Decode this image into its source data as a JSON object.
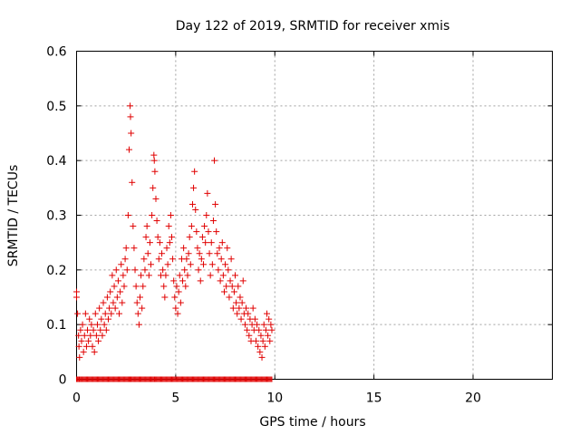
{
  "chart_data": {
    "type": "scatter",
    "title": "Day 122 of 2019, SRMTID for receiver xmis",
    "xlabel": "GPS time / hours",
    "ylabel": "SRMTID / TECUs",
    "xlim": [
      0,
      24
    ],
    "ylim": [
      0,
      0.6
    ],
    "xticks": [
      0,
      5,
      10,
      15,
      20
    ],
    "yticks": [
      0,
      0.1,
      0.2,
      0.3,
      0.4,
      0.5,
      0.6
    ],
    "xtick_labels": [
      "0",
      "5",
      "10",
      "15",
      "20"
    ],
    "ytick_labels": [
      "0",
      "0.1",
      "0.2",
      "0.3",
      "0.4",
      "0.5",
      "0.6"
    ],
    "grid": true,
    "marker": "+",
    "color": "#e00000",
    "series": [
      {
        "name": "SRMTID",
        "points": [
          [
            0.0,
            0.16
          ],
          [
            0.0,
            0.15
          ],
          [
            0.05,
            0.12
          ],
          [
            0.1,
            0.08
          ],
          [
            0.12,
            0.06
          ],
          [
            0.15,
            0.04
          ],
          [
            0.2,
            0.09
          ],
          [
            0.25,
            0.07
          ],
          [
            0.3,
            0.1
          ],
          [
            0.35,
            0.05
          ],
          [
            0.4,
            0.08
          ],
          [
            0.45,
            0.12
          ],
          [
            0.5,
            0.06
          ],
          [
            0.55,
            0.09
          ],
          [
            0.6,
            0.07
          ],
          [
            0.65,
            0.11
          ],
          [
            0.7,
            0.08
          ],
          [
            0.75,
            0.1
          ],
          [
            0.8,
            0.06
          ],
          [
            0.85,
            0.09
          ],
          [
            0.9,
            0.05
          ],
          [
            0.95,
            0.12
          ],
          [
            1.0,
            0.08
          ],
          [
            1.05,
            0.1
          ],
          [
            1.1,
            0.07
          ],
          [
            1.15,
            0.13
          ],
          [
            1.2,
            0.09
          ],
          [
            1.25,
            0.11
          ],
          [
            1.3,
            0.08
          ],
          [
            1.35,
            0.14
          ],
          [
            1.4,
            0.1
          ],
          [
            1.45,
            0.12
          ],
          [
            1.5,
            0.09
          ],
          [
            1.55,
            0.15
          ],
          [
            1.6,
            0.11
          ],
          [
            1.65,
            0.13
          ],
          [
            1.7,
            0.16
          ],
          [
            1.75,
            0.12
          ],
          [
            1.8,
            0.19
          ],
          [
            1.85,
            0.14
          ],
          [
            1.9,
            0.17
          ],
          [
            1.95,
            0.13
          ],
          [
            2.0,
            0.2
          ],
          [
            2.05,
            0.15
          ],
          [
            2.1,
            0.18
          ],
          [
            2.15,
            0.12
          ],
          [
            2.2,
            0.16
          ],
          [
            2.25,
            0.21
          ],
          [
            2.3,
            0.14
          ],
          [
            2.35,
            0.19
          ],
          [
            2.4,
            0.17
          ],
          [
            2.45,
            0.22
          ],
          [
            2.5,
            0.24
          ],
          [
            2.55,
            0.2
          ],
          [
            2.6,
            0.3
          ],
          [
            2.65,
            0.42
          ],
          [
            2.7,
            0.5
          ],
          [
            2.72,
            0.48
          ],
          [
            2.75,
            0.45
          ],
          [
            2.8,
            0.36
          ],
          [
            2.85,
            0.28
          ],
          [
            2.9,
            0.24
          ],
          [
            2.95,
            0.2
          ],
          [
            3.0,
            0.17
          ],
          [
            3.05,
            0.14
          ],
          [
            3.1,
            0.12
          ],
          [
            3.15,
            0.1
          ],
          [
            3.2,
            0.15
          ],
          [
            3.25,
            0.19
          ],
          [
            3.3,
            0.13
          ],
          [
            3.35,
            0.17
          ],
          [
            3.4,
            0.22
          ],
          [
            3.45,
            0.2
          ],
          [
            3.5,
            0.26
          ],
          [
            3.55,
            0.28
          ],
          [
            3.6,
            0.23
          ],
          [
            3.65,
            0.19
          ],
          [
            3.7,
            0.25
          ],
          [
            3.75,
            0.21
          ],
          [
            3.8,
            0.3
          ],
          [
            3.85,
            0.35
          ],
          [
            3.9,
            0.41
          ],
          [
            3.92,
            0.4
          ],
          [
            3.95,
            0.38
          ],
          [
            4.0,
            0.33
          ],
          [
            4.05,
            0.29
          ],
          [
            4.1,
            0.26
          ],
          [
            4.15,
            0.22
          ],
          [
            4.2,
            0.25
          ],
          [
            4.25,
            0.19
          ],
          [
            4.3,
            0.23
          ],
          [
            4.35,
            0.2
          ],
          [
            4.4,
            0.17
          ],
          [
            4.45,
            0.15
          ],
          [
            4.5,
            0.19
          ],
          [
            4.55,
            0.24
          ],
          [
            4.6,
            0.21
          ],
          [
            4.65,
            0.28
          ],
          [
            4.7,
            0.25
          ],
          [
            4.75,
            0.3
          ],
          [
            4.8,
            0.26
          ],
          [
            4.85,
            0.22
          ],
          [
            4.9,
            0.18
          ],
          [
            4.95,
            0.15
          ],
          [
            5.0,
            0.13
          ],
          [
            5.05,
            0.17
          ],
          [
            5.1,
            0.12
          ],
          [
            5.15,
            0.16
          ],
          [
            5.2,
            0.19
          ],
          [
            5.25,
            0.14
          ],
          [
            5.3,
            0.22
          ],
          [
            5.35,
            0.18
          ],
          [
            5.4,
            0.24
          ],
          [
            5.45,
            0.2
          ],
          [
            5.5,
            0.17
          ],
          [
            5.55,
            0.22
          ],
          [
            5.6,
            0.19
          ],
          [
            5.65,
            0.23
          ],
          [
            5.7,
            0.26
          ],
          [
            5.75,
            0.21
          ],
          [
            5.8,
            0.28
          ],
          [
            5.85,
            0.32
          ],
          [
            5.9,
            0.35
          ],
          [
            5.95,
            0.38
          ],
          [
            6.0,
            0.31
          ],
          [
            6.05,
            0.27
          ],
          [
            6.1,
            0.24
          ],
          [
            6.15,
            0.2
          ],
          [
            6.2,
            0.23
          ],
          [
            6.25,
            0.18
          ],
          [
            6.3,
            0.22
          ],
          [
            6.35,
            0.26
          ],
          [
            6.4,
            0.21
          ],
          [
            6.45,
            0.28
          ],
          [
            6.5,
            0.25
          ],
          [
            6.55,
            0.3
          ],
          [
            6.6,
            0.34
          ],
          [
            6.65,
            0.27
          ],
          [
            6.7,
            0.23
          ],
          [
            6.75,
            0.19
          ],
          [
            6.8,
            0.25
          ],
          [
            6.85,
            0.21
          ],
          [
            6.9,
            0.29
          ],
          [
            6.95,
            0.4
          ],
          [
            7.0,
            0.32
          ],
          [
            7.05,
            0.27
          ],
          [
            7.1,
            0.23
          ],
          [
            7.15,
            0.2
          ],
          [
            7.2,
            0.24
          ],
          [
            7.25,
            0.18
          ],
          [
            7.3,
            0.22
          ],
          [
            7.35,
            0.25
          ],
          [
            7.4,
            0.19
          ],
          [
            7.45,
            0.16
          ],
          [
            7.5,
            0.21
          ],
          [
            7.55,
            0.17
          ],
          [
            7.6,
            0.24
          ],
          [
            7.65,
            0.2
          ],
          [
            7.7,
            0.15
          ],
          [
            7.75,
            0.18
          ],
          [
            7.8,
            0.22
          ],
          [
            7.85,
            0.17
          ],
          [
            7.9,
            0.13
          ],
          [
            7.95,
            0.16
          ],
          [
            8.0,
            0.19
          ],
          [
            8.05,
            0.14
          ],
          [
            8.1,
            0.12
          ],
          [
            8.15,
            0.17
          ],
          [
            8.2,
            0.13
          ],
          [
            8.25,
            0.15
          ],
          [
            8.3,
            0.11
          ],
          [
            8.35,
            0.14
          ],
          [
            8.4,
            0.18
          ],
          [
            8.45,
            0.12
          ],
          [
            8.5,
            0.1
          ],
          [
            8.55,
            0.13
          ],
          [
            8.6,
            0.09
          ],
          [
            8.65,
            0.12
          ],
          [
            8.7,
            0.08
          ],
          [
            8.75,
            0.11
          ],
          [
            8.8,
            0.07
          ],
          [
            8.85,
            0.1
          ],
          [
            8.9,
            0.13
          ],
          [
            8.95,
            0.09
          ],
          [
            9.0,
            0.11
          ],
          [
            9.05,
            0.07
          ],
          [
            9.1,
            0.1
          ],
          [
            9.15,
            0.06
          ],
          [
            9.2,
            0.09
          ],
          [
            9.25,
            0.05
          ],
          [
            9.3,
            0.08
          ],
          [
            9.35,
            0.04
          ],
          [
            9.4,
            0.07
          ],
          [
            9.45,
            0.1
          ],
          [
            9.5,
            0.06
          ],
          [
            9.55,
            0.09
          ],
          [
            9.6,
            0.12
          ],
          [
            9.65,
            0.08
          ],
          [
            9.7,
            0.11
          ],
          [
            9.75,
            0.07
          ],
          [
            9.8,
            0.1
          ],
          [
            9.85,
            0.09
          ]
        ]
      }
    ]
  }
}
